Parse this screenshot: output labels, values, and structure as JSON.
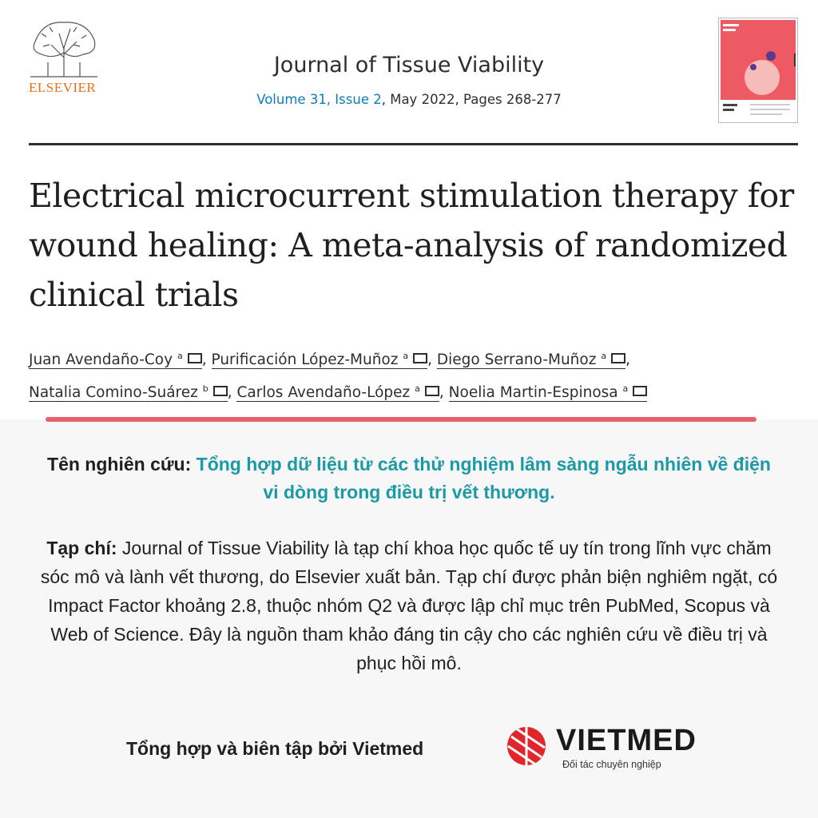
{
  "header": {
    "publisher": "ELSEVIER",
    "journal": "Journal of Tissue Viability",
    "volume_link": "Volume 31, Issue 2",
    "details": ", May 2022, Pages 268-277"
  },
  "article": {
    "title": "Electrical microcurrent stimulation therapy for wound healing: A meta-analysis of randomized clinical trials",
    "separator": ",",
    "authors": [
      {
        "name": "Juan Avendaño-Coy",
        "affiliation": "a"
      },
      {
        "name": "Purificación López-Muñoz",
        "affiliation": "a"
      },
      {
        "name": "Diego Serrano-Muñoz",
        "affiliation": "a"
      },
      {
        "name": "Natalia Comino-Suárez",
        "affiliation": "b"
      },
      {
        "name": "Carlos Avendaño-López",
        "affiliation": "a"
      },
      {
        "name": "Noelia Martin-Espinosa",
        "affiliation": "a"
      }
    ]
  },
  "summary": {
    "study_label": "Tên nghiên cứu:",
    "study_text": "Tổng hợp dữ liệu từ các thử nghiệm lâm sàng ngẫu nhiên về điện vi dòng trong điều trị vết thương.",
    "journal_label": "Tạp chí:",
    "journal_text": "Journal of Tissue Viability là tạp chí khoa học quốc tế uy tín trong lĩnh vực chăm sóc mô và lành vết thương, do Elsevier xuất bản. Tạp chí được phản biện nghiêm ngặt, có Impact Factor khoảng 2.8, thuộc nhóm Q2 và được lập chỉ mục trên PubMed, Scopus và Web of Science. Đây là nguồn tham khảo đáng tin cậy cho các nghiên cứu về điều trị và phục hồi mô."
  },
  "footer": {
    "credit": "Tổng hợp và biên tập bởi Vietmed",
    "brand": "VIETMED",
    "tagline": "Đối tác chuyên nghiệp"
  }
}
